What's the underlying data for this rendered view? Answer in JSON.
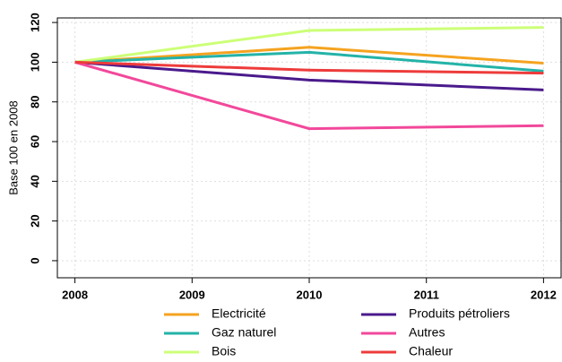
{
  "chart_data": {
    "type": "line",
    "y_label": "Base 100 en 2008",
    "x": [
      2008,
      2010,
      2012
    ],
    "series": [
      {
        "name": "Electricité",
        "color": "#f5a31f",
        "values": [
          100,
          107.5,
          99.5
        ]
      },
      {
        "name": "Gaz naturel",
        "color": "#24b3a8",
        "values": [
          100,
          105,
          95.5
        ]
      },
      {
        "name": "Bois",
        "color": "#ccff77",
        "values": [
          100,
          116,
          117.5
        ]
      },
      {
        "name": "Produits pétroliers",
        "color": "#4a1a8c",
        "values": [
          100,
          91,
          86
        ]
      },
      {
        "name": "Autres",
        "color": "#f2489b",
        "values": [
          100,
          66.5,
          68
        ]
      },
      {
        "name": "Chaleur",
        "color": "#ee3b3b",
        "values": [
          100,
          96,
          94.5
        ]
      }
    ],
    "xlim": [
      2007.85,
      2012.15
    ],
    "ylim": [
      -8.6,
      122.3
    ],
    "xticks": [
      2008,
      2009,
      2010,
      2011,
      2012
    ],
    "yticks": [
      0,
      20,
      40,
      60,
      80,
      100,
      120
    ],
    "grid": true,
    "legend_position": "bottom"
  }
}
